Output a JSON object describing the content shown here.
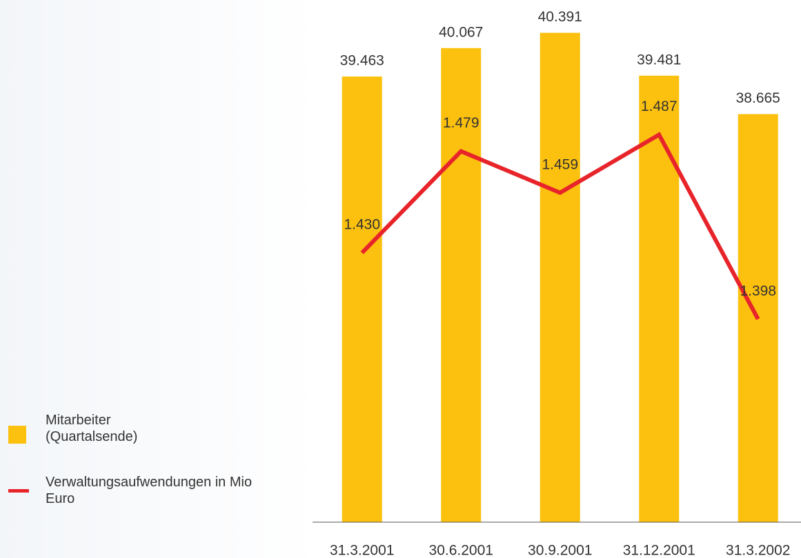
{
  "chart_data": {
    "type": "bar_line",
    "categories": [
      "31.3.2001",
      "30.6.2001",
      "30.9.2001",
      "31.12.2001",
      "31.3.2002"
    ],
    "series": [
      {
        "name": "Mitarbeiter (Quartalsende)",
        "type": "bar",
        "color": "#fcc10f",
        "values": [
          39463,
          40067,
          40391,
          39481,
          38665
        ],
        "value_labels": [
          "39.463",
          "40.067",
          "40.391",
          "39.481",
          "38.665"
        ]
      },
      {
        "name": "Verwaltungsaufwendungen in Mio Euro",
        "type": "line",
        "color": "#e8242b",
        "axis": "y2",
        "values": [
          1430,
          1479,
          1459,
          1487,
          1398
        ],
        "value_labels": [
          "1.430",
          "1.479",
          "1.459",
          "1.487",
          "1.398"
        ]
      }
    ],
    "ylim": [
      30000,
      41000
    ],
    "y2lim": [
      1300,
      1550
    ],
    "legend": "bottom-left"
  }
}
